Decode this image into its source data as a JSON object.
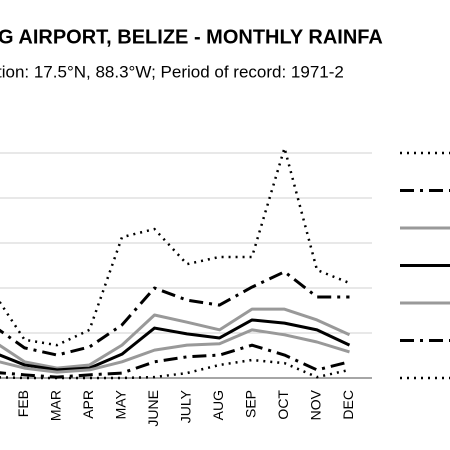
{
  "chart_data": {
    "type": "line",
    "title": "G AIRPORT, BELIZE - MONTHLY RAINFA",
    "subtitle": "tion: 17.5°N, 88.3°W; Period of record: 1971-2",
    "categories": [
      null,
      "FEB",
      "MAR",
      "APR",
      "MAY",
      "JUNE",
      "JULY",
      "AUG",
      "SEP",
      "OCT",
      "NOV",
      "DEC"
    ],
    "ylim": [
      0,
      5.5
    ],
    "grid_values": [
      0,
      1,
      2,
      3,
      4,
      5
    ],
    "grid": true,
    "series": [
      {
        "color": "#000000",
        "dash": "dot",
        "width": 2.5,
        "values": [
          1.95,
          0.85,
          0.73,
          1.07,
          3.13,
          3.31,
          2.53,
          2.69,
          2.69,
          5.11,
          2.4,
          2.11
        ]
      },
      {
        "color": "#000000",
        "dash": "dashdot",
        "width": 3,
        "values": [
          1.18,
          0.67,
          0.51,
          0.69,
          1.18,
          2.0,
          1.73,
          1.62,
          2.02,
          2.36,
          1.8,
          1.8
        ]
      },
      {
        "color": "#999999",
        "dash": "solid",
        "width": 3,
        "values": [
          0.84,
          0.36,
          0.22,
          0.29,
          0.73,
          1.4,
          1.24,
          1.07,
          1.53,
          1.53,
          1.29,
          0.96
        ]
      },
      {
        "color": "#000000",
        "dash": "solid",
        "width": 3,
        "values": [
          0.58,
          0.29,
          0.18,
          0.22,
          0.53,
          1.11,
          0.98,
          0.89,
          1.29,
          1.22,
          1.07,
          0.73
        ]
      },
      {
        "color": "#999999",
        "dash": "solid",
        "width": 3,
        "values": [
          0.4,
          0.22,
          0.13,
          0.18,
          0.36,
          0.62,
          0.73,
          0.76,
          1.07,
          0.96,
          0.8,
          0.58
        ]
      },
      {
        "color": "#000000",
        "dash": "dashdot",
        "width": 3,
        "values": [
          0.13,
          0.07,
          0.02,
          0.07,
          0.11,
          0.36,
          0.47,
          0.51,
          0.73,
          0.51,
          0.18,
          0.36
        ]
      },
      {
        "color": "#000000",
        "dash": "dot",
        "width": 2.5,
        "values": [
          0.02,
          0,
          0,
          0,
          0,
          0.02,
          0.11,
          0.29,
          0.4,
          0.33,
          0.02,
          0.18
        ]
      }
    ]
  }
}
